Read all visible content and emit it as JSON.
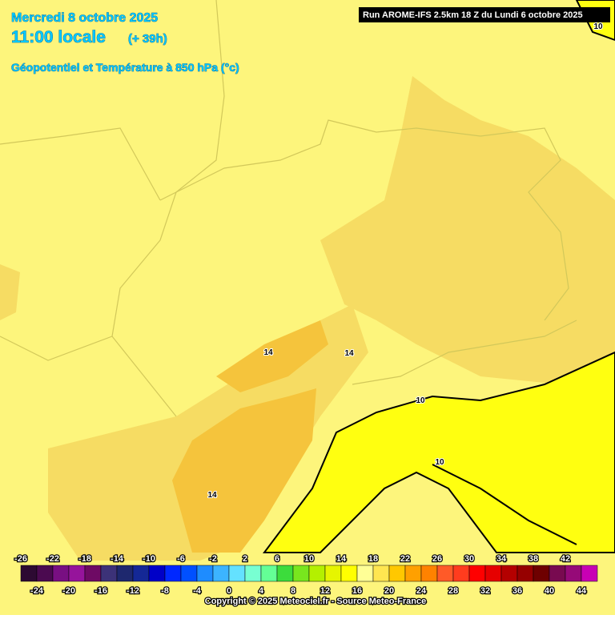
{
  "header": {
    "date": "Mercredi 8 octobre 2025",
    "time": "11:00 locale",
    "lead": "(+ 39h)",
    "field": "Géopotentiel et Température à 850 hPa (°c)",
    "run": "Run AROME-IFS 2.5km 18 Z du Lundi 6 octobre 2025"
  },
  "contour_labels": [
    "10",
    "14",
    "14",
    "14",
    "10",
    "10"
  ],
  "scale": {
    "ticks_top": [
      -26,
      -22,
      -18,
      -14,
      -10,
      -6,
      -2,
      2,
      6,
      10,
      14,
      18,
      22,
      26,
      30,
      34,
      38,
      42
    ],
    "ticks_bottom": [
      -24,
      -20,
      -16,
      -12,
      -8,
      -4,
      0,
      4,
      8,
      12,
      16,
      20,
      24,
      28,
      32,
      36,
      40,
      44
    ],
    "lim": [
      -26,
      46
    ],
    "colors": [
      "#2d0a32",
      "#4b0a50",
      "#780f82",
      "#96149b",
      "#6e0a64",
      "#3c3278",
      "#1e286e",
      "#142896",
      "#0000c8",
      "#0028ff",
      "#0050ff",
      "#1e8cff",
      "#3cb4ff",
      "#64e1ff",
      "#78ffd2",
      "#64ff96",
      "#3cdc3c",
      "#78e61e",
      "#b4f000",
      "#e6f500",
      "#ffff00",
      "#ffff96",
      "#ffe650",
      "#ffc800",
      "#ffa000",
      "#ff8200",
      "#ff5a28",
      "#ff3c1e",
      "#ff0000",
      "#e60000",
      "#b40000",
      "#960000",
      "#6e0000",
      "#780a50",
      "#960a78",
      "#c800b4"
    ]
  },
  "copyright": "Copyright © 2025 Meteociel.fr - Source Meteo-France"
}
